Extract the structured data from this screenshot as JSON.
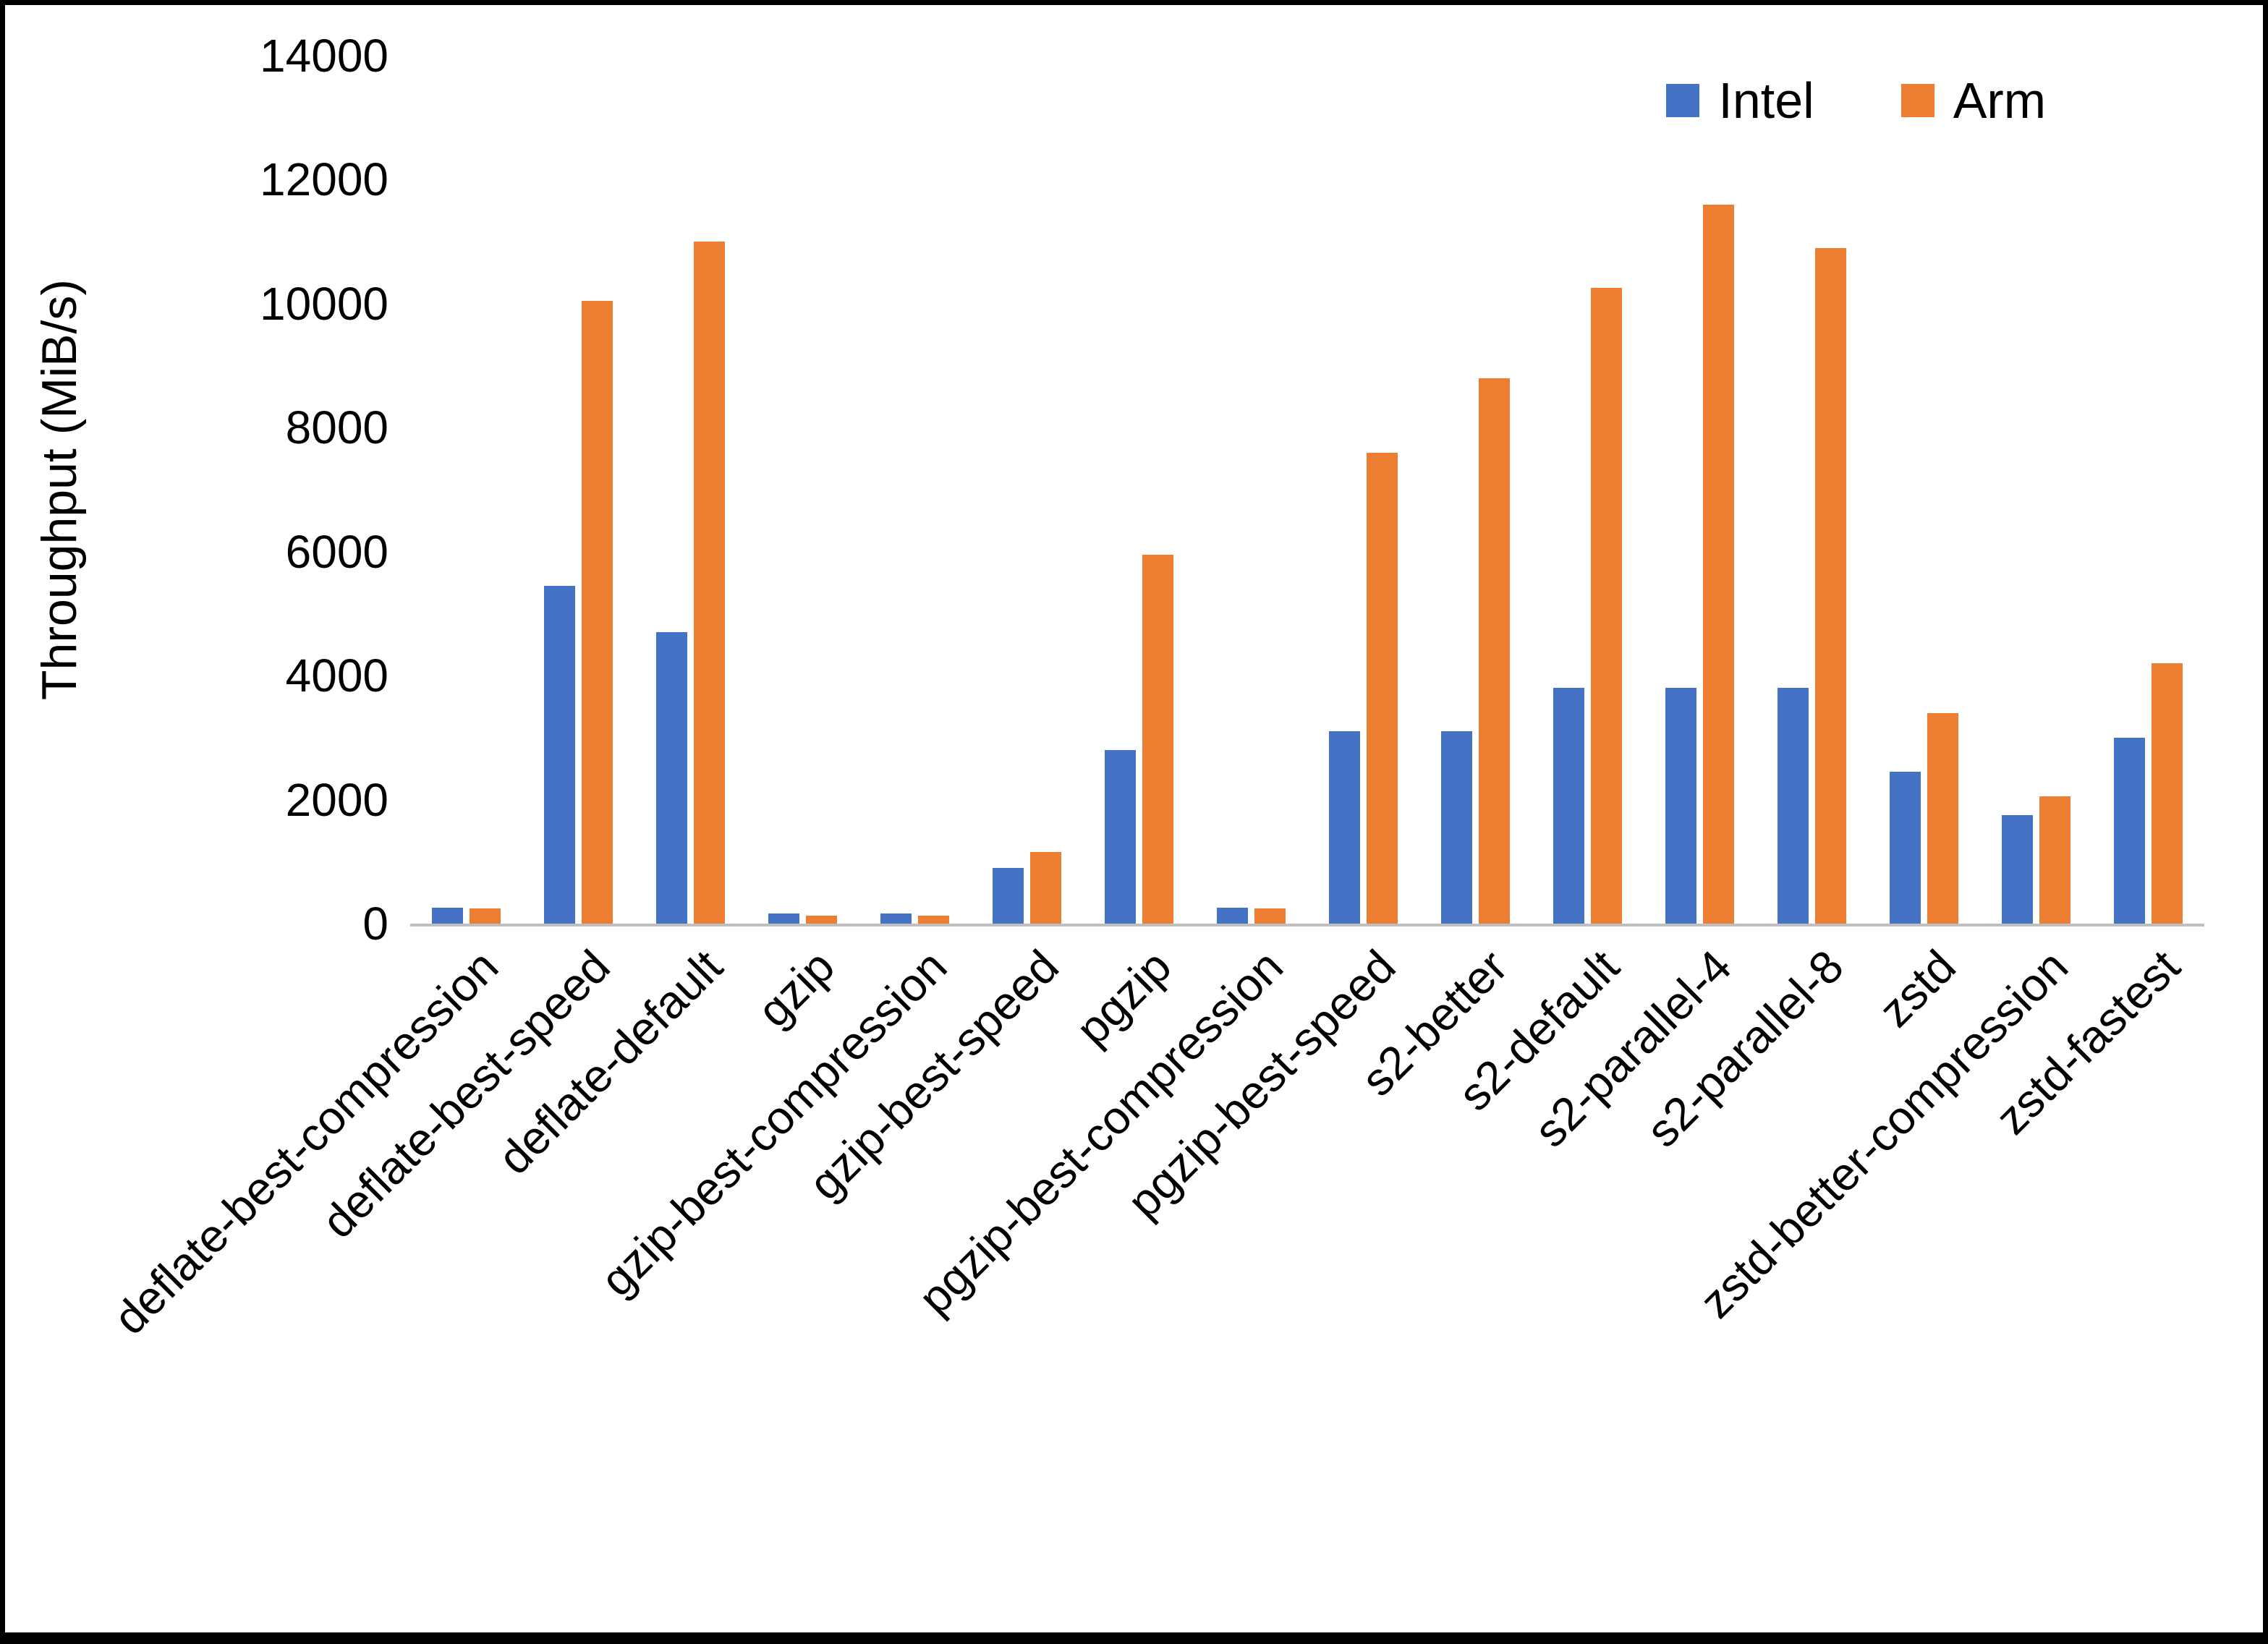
{
  "chart_data": {
    "type": "bar",
    "title": "",
    "xlabel": "",
    "ylabel": "Throughput (MiB/s)",
    "ylim": [
      0,
      14000
    ],
    "yticks": [
      0,
      2000,
      4000,
      6000,
      8000,
      10000,
      12000,
      14000
    ],
    "grid": false,
    "legend_position": "top-right",
    "categories": [
      "deflate-best-compression",
      "deflate-best-speed",
      "deflate-default",
      "gzip",
      "gzip-best-compression",
      "gzip-best-speed",
      "pgzip",
      "pgzip-best-compression",
      "pgzip-best-speed",
      "s2-better",
      "s2-default",
      "s2-parallel-4",
      "s2-parallel-8",
      "zstd",
      "zstd-better-compression",
      "zstd-fastest"
    ],
    "series": [
      {
        "name": "Intel",
        "color": "#4472C4",
        "values": [
          260,
          5450,
          4700,
          160,
          160,
          900,
          2800,
          260,
          3100,
          3100,
          3800,
          3800,
          3800,
          2450,
          1750,
          3000
        ]
      },
      {
        "name": "Arm",
        "color": "#ED7D31",
        "values": [
          250,
          10050,
          11000,
          130,
          130,
          1150,
          5950,
          250,
          7600,
          8800,
          10250,
          11600,
          10900,
          3400,
          2050,
          4200
        ]
      }
    ]
  }
}
